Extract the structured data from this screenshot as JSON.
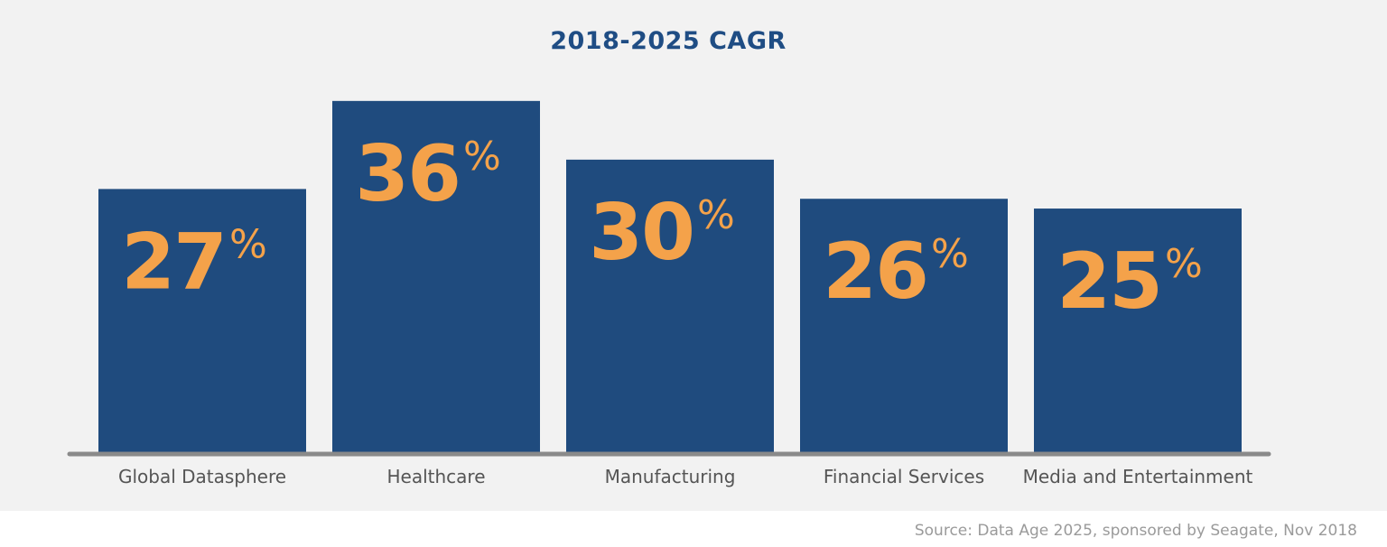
{
  "chart_data": {
    "type": "bar",
    "title": "2018-2025 CAGR",
    "categories": [
      "Global Datasphere",
      "Healthcare",
      "Manufacturing",
      "Financial Services",
      "Media and Entertainment"
    ],
    "values": [
      27,
      36,
      30,
      26,
      25
    ],
    "data_labels": [
      "27",
      "36",
      "30",
      "26",
      "25"
    ],
    "value_suffix": "%",
    "ylim": [
      0,
      38.2
    ],
    "xlabel": "",
    "ylabel": "",
    "grid": false,
    "legend": "none",
    "colors": {
      "bar": "#1f4b7e",
      "label": "#f4a24a",
      "baseline": "#8a8a8a",
      "title": "#1f4d84",
      "category": "#555555"
    }
  },
  "source": "Source: Data Age 2025, sponsored by Seagate, Nov 2018"
}
